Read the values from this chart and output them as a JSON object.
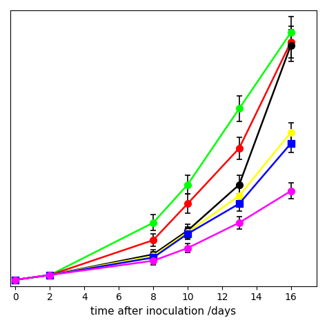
{
  "series": [
    {
      "label": "green",
      "color": "#00FF00",
      "marker": "o",
      "x": [
        0,
        2,
        8,
        10,
        13,
        16
      ],
      "y": [
        0.02,
        0.05,
        0.38,
        0.62,
        1.1,
        1.58
      ],
      "yerr": [
        0.005,
        0.005,
        0.05,
        0.06,
        0.08,
        0.1
      ]
    },
    {
      "label": "red",
      "color": "#FF0000",
      "marker": "o",
      "x": [
        0,
        2,
        8,
        10,
        13,
        16
      ],
      "y": [
        0.02,
        0.05,
        0.27,
        0.5,
        0.85,
        1.52
      ],
      "yerr": [
        0.005,
        0.005,
        0.04,
        0.06,
        0.07,
        0.1
      ]
    },
    {
      "label": "black",
      "color": "#000000",
      "marker": "o",
      "x": [
        0,
        2,
        8,
        10,
        13,
        16
      ],
      "y": [
        0.02,
        0.05,
        0.18,
        0.33,
        0.62,
        1.5
      ],
      "yerr": [
        0.005,
        0.005,
        0.03,
        0.04,
        0.06,
        0.1
      ]
    },
    {
      "label": "yellow",
      "color": "#FFFF00",
      "marker": "o",
      "x": [
        0,
        2,
        8,
        10,
        13,
        16
      ],
      "y": [
        0.02,
        0.05,
        0.17,
        0.32,
        0.55,
        0.95
      ],
      "yerr": [
        0.005,
        0.005,
        0.025,
        0.035,
        0.05,
        0.06
      ]
    },
    {
      "label": "blue",
      "color": "#0000FF",
      "marker": "s",
      "x": [
        0,
        2,
        8,
        10,
        13,
        16
      ],
      "y": [
        0.02,
        0.05,
        0.16,
        0.31,
        0.5,
        0.88
      ],
      "yerr": [
        0.005,
        0.005,
        0.025,
        0.035,
        0.045,
        0.055
      ]
    },
    {
      "label": "magenta",
      "color": "#FF00FF",
      "marker": "o",
      "x": [
        0,
        2,
        8,
        10,
        13,
        16
      ],
      "y": [
        0.02,
        0.05,
        0.14,
        0.22,
        0.38,
        0.58
      ],
      "yerr": [
        0.005,
        0.005,
        0.025,
        0.03,
        0.04,
        0.05
      ]
    }
  ],
  "xlabel": "time after inoculation /days",
  "xlim": [
    -0.3,
    17.5
  ],
  "ylim": [
    -0.02,
    1.72
  ],
  "xticks": [
    0,
    2,
    4,
    6,
    8,
    10,
    12,
    14,
    16
  ],
  "background_color": "#ffffff",
  "markersize": 7,
  "linewidth": 1.8,
  "elinewidth": 1.2,
  "capsize": 3,
  "capthick": 1.2,
  "xlabel_fontsize": 11,
  "tick_fontsize": 10
}
